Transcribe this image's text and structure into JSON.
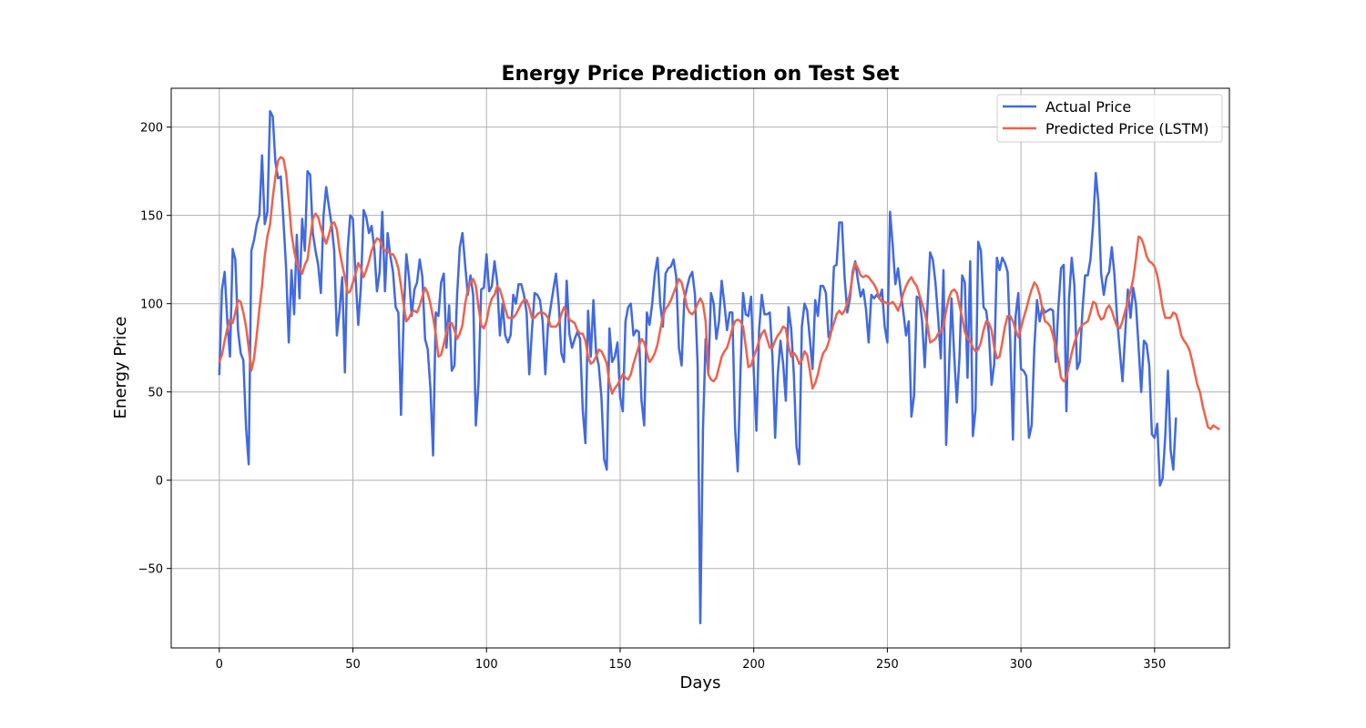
{
  "chart_data": {
    "type": "line",
    "title": "Energy Price Prediction on Test Set",
    "xlabel": "Days",
    "ylabel": "Energy Price",
    "xlim": [
      -18,
      378
    ],
    "ylim": [
      -95,
      222
    ],
    "xticks": [
      0,
      50,
      100,
      150,
      200,
      250,
      300,
      350
    ],
    "yticks": [
      -50,
      0,
      50,
      100,
      150,
      200
    ],
    "grid": true,
    "legend_position": "top-right",
    "series": [
      {
        "name": "Actual Price",
        "color": "#4169e1",
        "values": [
          60,
          108,
          118,
          90,
          70,
          131,
          125,
          85,
          72,
          68,
          30,
          9,
          130,
          136,
          145,
          150,
          184,
          145,
          152,
          209,
          206,
          180,
          171,
          172,
          147,
          120,
          78,
          119,
          94,
          139,
          103,
          148,
          130,
          175,
          173,
          140,
          130,
          122,
          106,
          150,
          166,
          155,
          145,
          130,
          82,
          96,
          115,
          61,
          130,
          150,
          148,
          115,
          88,
          110,
          153,
          149,
          140,
          144,
          131,
          107,
          118,
          152,
          107,
          140,
          127,
          118,
          98,
          95,
          37,
          93,
          128,
          115,
          93,
          108,
          112,
          125,
          115,
          80,
          74,
          52,
          14,
          95,
          93,
          112,
          117,
          75,
          99,
          62,
          65,
          105,
          132,
          140,
          122,
          105,
          116,
          105,
          31,
          55,
          108,
          109,
          128,
          107,
          110,
          124,
          112,
          82,
          100,
          82,
          78,
          82,
          105,
          100,
          111,
          111,
          105,
          95,
          60,
          85,
          106,
          105,
          102,
          90,
          60,
          88,
          98,
          108,
          117,
          100,
          72,
          67,
          113,
          83,
          75,
          80,
          84,
          80,
          40,
          21,
          96,
          70,
          102,
          72,
          65,
          47,
          12,
          6,
          86,
          67,
          70,
          78,
          47,
          39,
          90,
          98,
          100,
          82,
          85,
          84,
          45,
          31,
          95,
          88,
          100,
          117,
          126,
          100,
          87,
          117,
          120,
          121,
          125,
          115,
          75,
          65,
          102,
          109,
          115,
          118,
          105,
          65,
          -81,
          29,
          80,
          60,
          106,
          100,
          80,
          90,
          113,
          100,
          85,
          95,
          95,
          30,
          5,
          60,
          106,
          94,
          93,
          104,
          62,
          28,
          85,
          105,
          94,
          94,
          95,
          70,
          24,
          60,
          79,
          66,
          45,
          98,
          86,
          60,
          19,
          9,
          87,
          100,
          96,
          80,
          63,
          102,
          93,
          110,
          110,
          106,
          81,
          85,
          121,
          122,
          146,
          146,
          115,
          95,
          103,
          118,
          124,
          113,
          104,
          108,
          97,
          78,
          105,
          103,
          105,
          103,
          108,
          87,
          78,
          152,
          133,
          111,
          120,
          107,
          95,
          82,
          90,
          36,
          48,
          104,
          103,
          90,
          64,
          98,
          129,
          125,
          112,
          92,
          69,
          119,
          20,
          60,
          103,
          71,
          44,
          70,
          116,
          112,
          58,
          124,
          25,
          40,
          135,
          130,
          98,
          96,
          83,
          54,
          66,
          126,
          119,
          126,
          123,
          118,
          78,
          23,
          93,
          106,
          63,
          62,
          59,
          24,
          31,
          75,
          102,
          90,
          98,
          95,
          96,
          97,
          96,
          67,
          98,
          120,
          122,
          39,
          103,
          126,
          110,
          63,
          67,
          96,
          116,
          116,
          125,
          145,
          174,
          157,
          117,
          105,
          115,
          118,
          132,
          116,
          91,
          73,
          56,
          83,
          108,
          92,
          109,
          100,
          76,
          50,
          79,
          77,
          65,
          26,
          24,
          32,
          -3,
          1,
          25,
          62,
          17,
          6,
          35
        ]
      },
      {
        "name": "Predicted Price (LSTM)",
        "color": "#f0614a",
        "values": [
          67,
          71,
          79,
          86,
          91,
          89,
          95,
          102,
          101,
          95,
          87,
          75,
          62,
          69,
          82,
          97,
          110,
          127,
          138,
          145,
          160,
          172,
          181,
          183,
          182,
          174,
          158,
          140,
          130,
          123,
          120,
          117,
          122,
          125,
          137,
          148,
          151,
          149,
          143,
          138,
          134,
          139,
          145,
          146,
          142,
          130,
          122,
          115,
          106,
          107,
          112,
          117,
          123,
          120,
          115,
          119,
          124,
          130,
          134,
          137,
          136,
          132,
          130,
          130,
          128,
          128,
          125,
          120,
          110,
          99,
          90,
          92,
          95,
          96,
          95,
          99,
          104,
          109,
          106,
          100,
          92,
          83,
          70,
          71,
          77,
          84,
          89,
          89,
          85,
          80,
          83,
          88,
          100,
          108,
          112,
          114,
          110,
          98,
          88,
          86,
          90,
          98,
          103,
          105,
          110,
          108,
          103,
          97,
          92,
          92,
          92,
          94,
          97,
          100,
          102,
          102,
          98,
          92,
          92,
          94,
          95,
          95,
          94,
          92,
          87,
          87,
          87,
          89,
          94,
          98,
          95,
          91,
          90,
          89,
          85,
          83,
          83,
          79,
          70,
          66,
          67,
          70,
          74,
          73,
          70,
          66,
          55,
          49,
          52,
          54,
          57,
          60,
          58,
          57,
          60,
          66,
          71,
          76,
          80,
          78,
          72,
          67,
          69,
          72,
          77,
          85,
          93,
          97,
          99,
          102,
          106,
          110,
          114,
          112,
          106,
          98,
          95,
          94,
          96,
          100,
          103,
          100,
          90,
          60,
          57,
          56,
          58,
          64,
          70,
          73,
          75,
          80,
          86,
          90,
          91,
          90,
          87,
          76,
          64,
          65,
          70,
          74,
          79,
          83,
          85,
          80,
          75,
          75,
          79,
          82,
          84,
          87,
          86,
          76,
          70,
          72,
          70,
          66,
          68,
          73,
          71,
          62,
          52,
          55,
          60,
          67,
          72,
          74,
          78,
          84,
          89,
          94,
          96,
          94,
          96,
          100,
          106,
          116,
          123,
          120,
          116,
          115,
          116,
          115,
          113,
          111,
          108,
          103,
          101,
          101,
          100,
          100,
          101,
          99,
          96,
          100,
          106,
          110,
          113,
          115,
          112,
          110,
          105,
          100,
          95,
          88,
          78,
          79,
          80,
          83,
          84,
          87,
          96,
          103,
          107,
          108,
          106,
          99,
          92,
          84,
          80,
          79,
          75,
          73,
          74,
          78,
          85,
          90,
          89,
          85,
          75,
          69,
          70,
          78,
          87,
          93,
          93,
          90,
          85,
          81,
          86,
          92,
          97,
          103,
          108,
          112,
          110,
          105,
          97,
          90,
          89,
          87,
          82,
          75,
          68,
          58,
          56,
          58,
          65,
          72,
          78,
          82,
          86,
          88,
          89,
          90,
          95,
          101,
          100,
          94,
          91,
          92,
          97,
          99,
          96,
          91,
          87,
          86,
          90,
          96,
          101,
          107,
          114,
          125,
          138,
          137,
          133,
          127,
          124,
          123,
          121,
          116,
          108,
          98,
          92,
          92,
          92,
          95,
          94,
          89,
          82,
          79,
          77,
          74,
          68,
          61,
          54,
          50,
          42,
          36,
          30,
          29,
          31,
          30,
          29
        ]
      }
    ]
  }
}
